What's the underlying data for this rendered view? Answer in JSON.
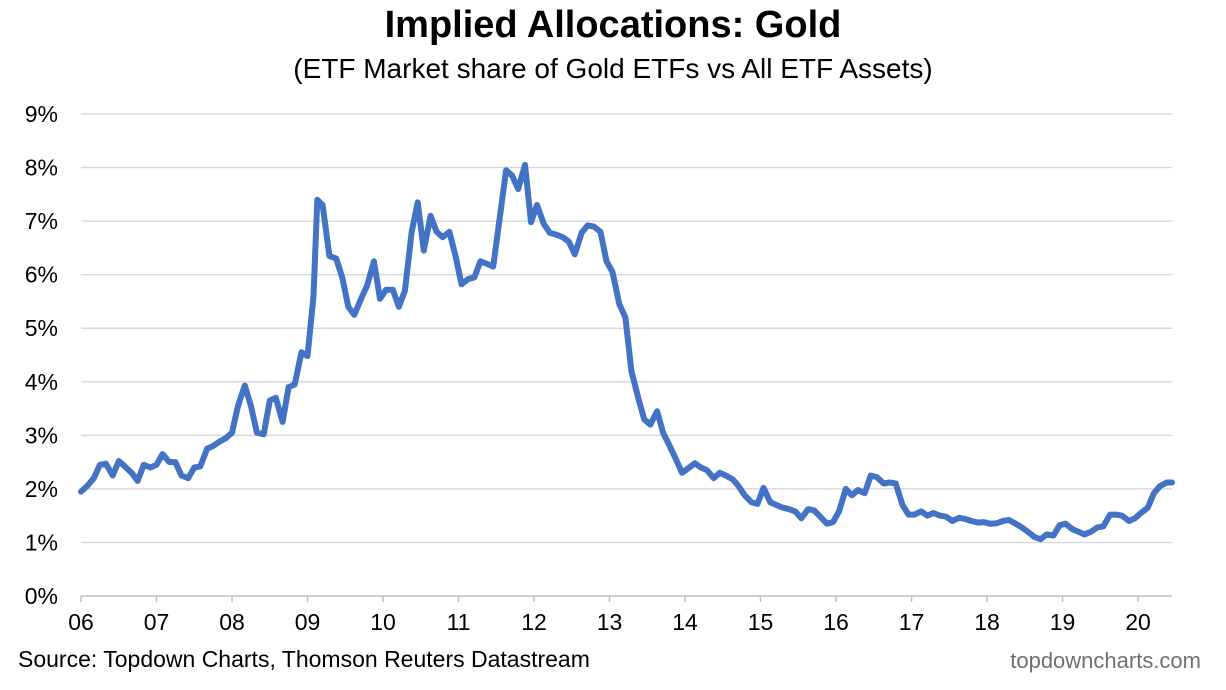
{
  "chart_data": {
    "type": "line",
    "title": "Implied Allocations: Gold",
    "subtitle": "(ETF Market share of Gold ETFs vs All ETF Assets)",
    "xlabel": "",
    "ylabel": "",
    "xlim": [
      2006.0,
      2020.45
    ],
    "ylim": [
      0,
      9
    ],
    "y_ticks": [
      "0%",
      "1%",
      "2%",
      "3%",
      "4%",
      "5%",
      "6%",
      "7%",
      "8%",
      "9%"
    ],
    "x_ticks": [
      "06",
      "07",
      "08",
      "09",
      "10",
      "11",
      "12",
      "13",
      "14",
      "15",
      "16",
      "17",
      "18",
      "19",
      "20"
    ],
    "grid": true,
    "series": [
      {
        "color": "#4472C4",
        "points": [
          [
            2006.0,
            1.95
          ],
          [
            2006.08,
            2.05
          ],
          [
            2006.17,
            2.2
          ],
          [
            2006.25,
            2.45
          ],
          [
            2006.33,
            2.47
          ],
          [
            2006.42,
            2.25
          ],
          [
            2006.5,
            2.52
          ],
          [
            2006.58,
            2.42
          ],
          [
            2006.67,
            2.3
          ],
          [
            2006.75,
            2.15
          ],
          [
            2006.83,
            2.45
          ],
          [
            2006.92,
            2.4
          ],
          [
            2007.0,
            2.45
          ],
          [
            2007.08,
            2.65
          ],
          [
            2007.17,
            2.5
          ],
          [
            2007.25,
            2.5
          ],
          [
            2007.33,
            2.25
          ],
          [
            2007.42,
            2.2
          ],
          [
            2007.5,
            2.4
          ],
          [
            2007.58,
            2.42
          ],
          [
            2007.67,
            2.75
          ],
          [
            2007.75,
            2.8
          ],
          [
            2007.83,
            2.88
          ],
          [
            2007.92,
            2.95
          ],
          [
            2008.0,
            3.05
          ],
          [
            2008.08,
            3.55
          ],
          [
            2008.17,
            3.93
          ],
          [
            2008.25,
            3.55
          ],
          [
            2008.33,
            3.05
          ],
          [
            2008.42,
            3.02
          ],
          [
            2008.5,
            3.65
          ],
          [
            2008.58,
            3.7
          ],
          [
            2008.67,
            3.25
          ],
          [
            2008.75,
            3.9
          ],
          [
            2008.83,
            3.95
          ],
          [
            2008.92,
            4.55
          ],
          [
            2009.0,
            4.48
          ],
          [
            2009.08,
            5.6
          ],
          [
            2009.13,
            7.4
          ],
          [
            2009.2,
            7.3
          ],
          [
            2009.29,
            6.35
          ],
          [
            2009.38,
            6.3
          ],
          [
            2009.46,
            5.95
          ],
          [
            2009.54,
            5.4
          ],
          [
            2009.62,
            5.25
          ],
          [
            2009.71,
            5.55
          ],
          [
            2009.79,
            5.8
          ],
          [
            2009.88,
            6.25
          ],
          [
            2009.96,
            5.55
          ],
          [
            2010.04,
            5.72
          ],
          [
            2010.13,
            5.72
          ],
          [
            2010.21,
            5.4
          ],
          [
            2010.29,
            5.7
          ],
          [
            2010.38,
            6.8
          ],
          [
            2010.46,
            7.35
          ],
          [
            2010.54,
            6.45
          ],
          [
            2010.63,
            7.1
          ],
          [
            2010.71,
            6.8
          ],
          [
            2010.79,
            6.7
          ],
          [
            2010.88,
            6.8
          ],
          [
            2010.96,
            6.35
          ],
          [
            2011.04,
            5.82
          ],
          [
            2011.13,
            5.92
          ],
          [
            2011.21,
            5.95
          ],
          [
            2011.29,
            6.25
          ],
          [
            2011.38,
            6.2
          ],
          [
            2011.46,
            6.15
          ],
          [
            2011.54,
            7.0
          ],
          [
            2011.63,
            7.95
          ],
          [
            2011.71,
            7.85
          ],
          [
            2011.79,
            7.6
          ],
          [
            2011.88,
            8.05
          ],
          [
            2011.96,
            6.98
          ],
          [
            2012.04,
            7.3
          ],
          [
            2012.13,
            6.95
          ],
          [
            2012.21,
            6.78
          ],
          [
            2012.29,
            6.75
          ],
          [
            2012.38,
            6.7
          ],
          [
            2012.46,
            6.62
          ],
          [
            2012.54,
            6.38
          ],
          [
            2012.63,
            6.78
          ],
          [
            2012.71,
            6.92
          ],
          [
            2012.79,
            6.9
          ],
          [
            2012.88,
            6.8
          ],
          [
            2012.96,
            6.25
          ],
          [
            2013.04,
            6.05
          ],
          [
            2013.13,
            5.45
          ],
          [
            2013.21,
            5.2
          ],
          [
            2013.29,
            4.2
          ],
          [
            2013.38,
            3.7
          ],
          [
            2013.46,
            3.3
          ],
          [
            2013.54,
            3.2
          ],
          [
            2013.63,
            3.45
          ],
          [
            2013.71,
            3.05
          ],
          [
            2013.79,
            2.82
          ],
          [
            2013.88,
            2.55
          ],
          [
            2013.96,
            2.3
          ],
          [
            2014.04,
            2.38
          ],
          [
            2014.13,
            2.48
          ],
          [
            2014.21,
            2.4
          ],
          [
            2014.29,
            2.35
          ],
          [
            2014.38,
            2.2
          ],
          [
            2014.46,
            2.3
          ],
          [
            2014.54,
            2.25
          ],
          [
            2014.63,
            2.18
          ],
          [
            2014.71,
            2.05
          ],
          [
            2014.79,
            1.88
          ],
          [
            2014.88,
            1.75
          ],
          [
            2014.96,
            1.72
          ],
          [
            2015.04,
            2.02
          ],
          [
            2015.13,
            1.75
          ],
          [
            2015.21,
            1.7
          ],
          [
            2015.29,
            1.65
          ],
          [
            2015.38,
            1.62
          ],
          [
            2015.46,
            1.58
          ],
          [
            2015.54,
            1.45
          ],
          [
            2015.63,
            1.62
          ],
          [
            2015.71,
            1.6
          ],
          [
            2015.79,
            1.48
          ],
          [
            2015.88,
            1.35
          ],
          [
            2015.96,
            1.38
          ],
          [
            2016.04,
            1.58
          ],
          [
            2016.13,
            2.0
          ],
          [
            2016.21,
            1.88
          ],
          [
            2016.29,
            1.98
          ],
          [
            2016.38,
            1.92
          ],
          [
            2016.46,
            2.25
          ],
          [
            2016.54,
            2.22
          ],
          [
            2016.63,
            2.1
          ],
          [
            2016.71,
            2.12
          ],
          [
            2016.79,
            2.1
          ],
          [
            2016.88,
            1.7
          ],
          [
            2016.96,
            1.52
          ],
          [
            2017.04,
            1.52
          ],
          [
            2017.13,
            1.58
          ],
          [
            2017.21,
            1.5
          ],
          [
            2017.29,
            1.55
          ],
          [
            2017.38,
            1.5
          ],
          [
            2017.46,
            1.48
          ],
          [
            2017.54,
            1.4
          ],
          [
            2017.63,
            1.46
          ],
          [
            2017.71,
            1.44
          ],
          [
            2017.79,
            1.4
          ],
          [
            2017.88,
            1.37
          ],
          [
            2017.96,
            1.38
          ],
          [
            2018.04,
            1.35
          ],
          [
            2018.13,
            1.36
          ],
          [
            2018.21,
            1.4
          ],
          [
            2018.29,
            1.42
          ],
          [
            2018.38,
            1.35
          ],
          [
            2018.46,
            1.28
          ],
          [
            2018.54,
            1.2
          ],
          [
            2018.63,
            1.1
          ],
          [
            2018.71,
            1.06
          ],
          [
            2018.79,
            1.15
          ],
          [
            2018.88,
            1.13
          ],
          [
            2018.96,
            1.32
          ],
          [
            2019.04,
            1.35
          ],
          [
            2019.13,
            1.25
          ],
          [
            2019.21,
            1.2
          ],
          [
            2019.29,
            1.15
          ],
          [
            2019.38,
            1.2
          ],
          [
            2019.46,
            1.28
          ],
          [
            2019.54,
            1.3
          ],
          [
            2019.63,
            1.52
          ],
          [
            2019.71,
            1.52
          ],
          [
            2019.79,
            1.5
          ],
          [
            2019.88,
            1.4
          ],
          [
            2019.96,
            1.45
          ],
          [
            2020.04,
            1.55
          ],
          [
            2020.13,
            1.65
          ],
          [
            2020.21,
            1.92
          ],
          [
            2020.29,
            2.05
          ],
          [
            2020.38,
            2.12
          ],
          [
            2020.45,
            2.12
          ]
        ]
      }
    ]
  },
  "footer": {
    "source": "Source: Topdown Charts, Thomson Reuters Datastream",
    "brand": "topdowncharts.com"
  }
}
